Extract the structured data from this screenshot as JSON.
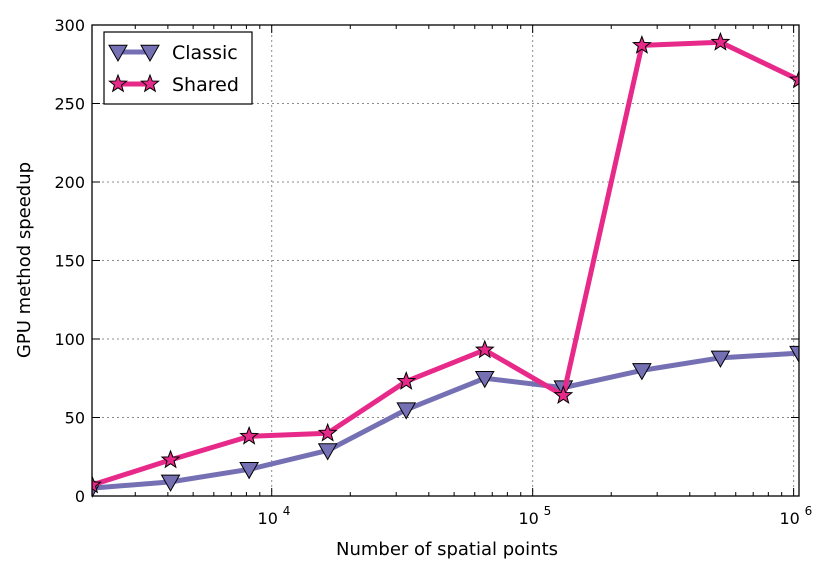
{
  "chart_data": {
    "type": "line",
    "title": "",
    "xlabel": "Number of spatial points",
    "ylabel": "GPU method speedup",
    "xscale": "log",
    "xlim": [
      2048,
      1048576
    ],
    "ylim": [
      0,
      300
    ],
    "y_ticks": [
      0,
      50,
      100,
      150,
      200,
      250,
      300
    ],
    "x_ticks": [
      {
        "value": 10000,
        "base": "10",
        "exp": "4"
      },
      {
        "value": 100000,
        "base": "10",
        "exp": "5"
      },
      {
        "value": 1000000,
        "base": "10",
        "exp": "6"
      }
    ],
    "grid": true,
    "legend_position": "top-left",
    "x": [
      2048,
      4096,
      8192,
      16384,
      32768,
      65536,
      131072,
      262144,
      524288,
      1048576
    ],
    "series": [
      {
        "name": "Classic",
        "color": "#7570b3",
        "marker": "triangle-down",
        "values": [
          5,
          9,
          17,
          29,
          55,
          75,
          69,
          80,
          88,
          91
        ]
      },
      {
        "name": "Shared",
        "color": "#e7298a",
        "marker": "star",
        "values": [
          7,
          23,
          38,
          40,
          73,
          93,
          64,
          287,
          289,
          265
        ]
      }
    ]
  }
}
